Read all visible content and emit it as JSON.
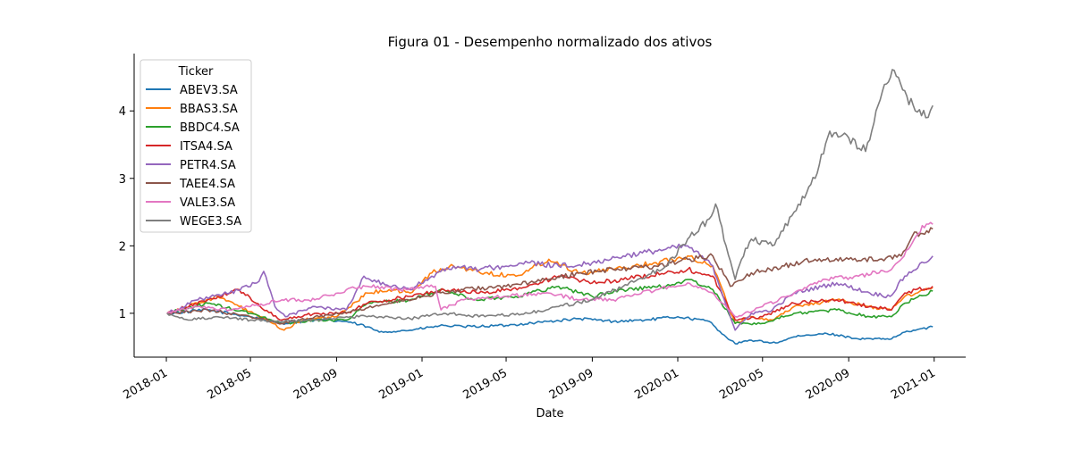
{
  "chart_data": {
    "type": "line",
    "title": "Figura 01 - Desempenho normalizado dos ativos",
    "xlabel": "Date",
    "ylabel": "",
    "xlim": [
      "2017-11-16",
      "2021-02-15"
    ],
    "ylim": [
      0.35,
      4.85
    ],
    "x_ticks": [
      "2018-01",
      "2018-05",
      "2018-09",
      "2019-01",
      "2019-05",
      "2019-09",
      "2020-01",
      "2020-05",
      "2020-09",
      "2021-01"
    ],
    "y_ticks": [
      1,
      2,
      3,
      4
    ],
    "grid": false,
    "legend": {
      "title": "Ticker",
      "position": "top-left"
    },
    "series": [
      {
        "name": "ABEV3.SA",
        "color": "#1f77b4",
        "points": [
          [
            "2018-01-02",
            1.0
          ],
          [
            "2018-03-01",
            1.05
          ],
          [
            "2018-05-01",
            0.95
          ],
          [
            "2018-06-15",
            0.85
          ],
          [
            "2018-08-01",
            0.9
          ],
          [
            "2018-09-15",
            0.88
          ],
          [
            "2018-10-15",
            0.8
          ],
          [
            "2018-11-01",
            0.72
          ],
          [
            "2018-12-15",
            0.75
          ],
          [
            "2019-02-01",
            0.82
          ],
          [
            "2019-03-01",
            0.8
          ],
          [
            "2019-05-01",
            0.82
          ],
          [
            "2019-07-01",
            0.88
          ],
          [
            "2019-08-15",
            0.92
          ],
          [
            "2019-10-01",
            0.88
          ],
          [
            "2019-11-15",
            0.9
          ],
          [
            "2020-01-01",
            0.95
          ],
          [
            "2020-02-15",
            0.88
          ],
          [
            "2020-03-10",
            0.65
          ],
          [
            "2020-03-23",
            0.55
          ],
          [
            "2020-04-15",
            0.6
          ],
          [
            "2020-05-20",
            0.56
          ],
          [
            "2020-06-15",
            0.65
          ],
          [
            "2020-08-01",
            0.7
          ],
          [
            "2020-08-15",
            0.68
          ],
          [
            "2020-09-15",
            0.62
          ],
          [
            "2020-11-01",
            0.62
          ],
          [
            "2020-11-20",
            0.72
          ],
          [
            "2020-12-30",
            0.8
          ]
        ]
      },
      {
        "name": "BBAS3.SA",
        "color": "#ff7f0e",
        "points": [
          [
            "2018-01-02",
            1.0
          ],
          [
            "2018-02-15",
            1.15
          ],
          [
            "2018-03-15",
            1.25
          ],
          [
            "2018-04-15",
            1.1
          ],
          [
            "2018-05-15",
            0.95
          ],
          [
            "2018-06-18",
            0.75
          ],
          [
            "2018-07-15",
            0.9
          ],
          [
            "2018-09-01",
            0.95
          ],
          [
            "2018-10-15",
            1.3
          ],
          [
            "2018-11-15",
            1.35
          ],
          [
            "2018-12-15",
            1.3
          ],
          [
            "2019-01-15",
            1.6
          ],
          [
            "2019-02-15",
            1.7
          ],
          [
            "2019-04-01",
            1.6
          ],
          [
            "2019-05-15",
            1.55
          ],
          [
            "2019-07-01",
            1.8
          ],
          [
            "2019-08-15",
            1.6
          ],
          [
            "2019-10-01",
            1.65
          ],
          [
            "2019-12-01",
            1.75
          ],
          [
            "2020-01-15",
            1.85
          ],
          [
            "2020-02-20",
            1.7
          ],
          [
            "2020-03-10",
            1.2
          ],
          [
            "2020-03-23",
            0.85
          ],
          [
            "2020-04-15",
            0.95
          ],
          [
            "2020-05-15",
            0.9
          ],
          [
            "2020-06-15",
            1.1
          ],
          [
            "2020-08-15",
            1.2
          ],
          [
            "2020-09-30",
            1.1
          ],
          [
            "2020-11-01",
            1.05
          ],
          [
            "2020-11-20",
            1.25
          ],
          [
            "2020-12-30",
            1.38
          ]
        ]
      },
      {
        "name": "BBDC4.SA",
        "color": "#2ca02c",
        "points": [
          [
            "2018-01-02",
            1.0
          ],
          [
            "2018-03-01",
            1.15
          ],
          [
            "2018-05-01",
            1.0
          ],
          [
            "2018-06-15",
            0.85
          ],
          [
            "2018-08-01",
            0.9
          ],
          [
            "2018-09-15",
            0.9
          ],
          [
            "2018-10-15",
            1.15
          ],
          [
            "2018-12-15",
            1.2
          ],
          [
            "2019-02-01",
            1.35
          ],
          [
            "2019-03-15",
            1.2
          ],
          [
            "2019-05-15",
            1.25
          ],
          [
            "2019-07-15",
            1.4
          ],
          [
            "2019-09-01",
            1.25
          ],
          [
            "2019-10-15",
            1.35
          ],
          [
            "2019-12-15",
            1.4
          ],
          [
            "2020-01-15",
            1.5
          ],
          [
            "2020-02-20",
            1.35
          ],
          [
            "2020-03-23",
            0.85
          ],
          [
            "2020-05-01",
            0.85
          ],
          [
            "2020-06-15",
            1.0
          ],
          [
            "2020-08-15",
            1.05
          ],
          [
            "2020-10-01",
            0.95
          ],
          [
            "2020-11-01",
            0.95
          ],
          [
            "2020-11-20",
            1.15
          ],
          [
            "2020-12-30",
            1.33
          ]
        ]
      },
      {
        "name": "ITSA4.SA",
        "color": "#d62728",
        "points": [
          [
            "2018-01-02",
            1.0
          ],
          [
            "2018-03-01",
            1.2
          ],
          [
            "2018-04-15",
            1.35
          ],
          [
            "2018-05-15",
            1.1
          ],
          [
            "2018-06-15",
            0.9
          ],
          [
            "2018-08-01",
            1.0
          ],
          [
            "2018-09-15",
            1.0
          ],
          [
            "2018-10-15",
            1.15
          ],
          [
            "2018-12-15",
            1.25
          ],
          [
            "2019-02-01",
            1.35
          ],
          [
            "2019-04-01",
            1.3
          ],
          [
            "2019-06-01",
            1.4
          ],
          [
            "2019-07-15",
            1.55
          ],
          [
            "2019-09-01",
            1.45
          ],
          [
            "2019-10-15",
            1.5
          ],
          [
            "2019-12-15",
            1.6
          ],
          [
            "2020-01-15",
            1.65
          ],
          [
            "2020-02-20",
            1.55
          ],
          [
            "2020-03-23",
            0.9
          ],
          [
            "2020-05-01",
            0.95
          ],
          [
            "2020-06-15",
            1.15
          ],
          [
            "2020-08-15",
            1.2
          ],
          [
            "2020-10-01",
            1.1
          ],
          [
            "2020-11-01",
            1.05
          ],
          [
            "2020-11-20",
            1.3
          ],
          [
            "2020-12-30",
            1.4
          ]
        ]
      },
      {
        "name": "PETR4.SA",
        "color": "#9467bd",
        "points": [
          [
            "2018-01-02",
            1.0
          ],
          [
            "2018-02-15",
            1.2
          ],
          [
            "2018-04-01",
            1.3
          ],
          [
            "2018-05-10",
            1.45
          ],
          [
            "2018-05-20",
            1.62
          ],
          [
            "2018-06-05",
            1.1
          ],
          [
            "2018-06-20",
            0.95
          ],
          [
            "2018-08-01",
            1.1
          ],
          [
            "2018-09-15",
            1.05
          ],
          [
            "2018-10-10",
            1.55
          ],
          [
            "2018-11-15",
            1.4
          ],
          [
            "2018-12-15",
            1.35
          ],
          [
            "2019-01-15",
            1.55
          ],
          [
            "2019-02-15",
            1.7
          ],
          [
            "2019-03-15",
            1.65
          ],
          [
            "2019-05-01",
            1.7
          ],
          [
            "2019-06-01",
            1.75
          ],
          [
            "2019-07-15",
            1.7
          ],
          [
            "2019-09-01",
            1.75
          ],
          [
            "2019-10-15",
            1.85
          ],
          [
            "2019-12-15",
            1.95
          ],
          [
            "2020-01-15",
            2.0
          ],
          [
            "2020-02-20",
            1.7
          ],
          [
            "2020-03-23",
            0.75
          ],
          [
            "2020-04-15",
            1.0
          ],
          [
            "2020-05-15",
            1.05
          ],
          [
            "2020-06-15",
            1.3
          ],
          [
            "2020-08-15",
            1.45
          ],
          [
            "2020-10-01",
            1.3
          ],
          [
            "2020-10-30",
            1.25
          ],
          [
            "2020-11-20",
            1.55
          ],
          [
            "2020-12-30",
            1.85
          ]
        ]
      },
      {
        "name": "TAEE4.SA",
        "color": "#8c564b",
        "points": [
          [
            "2018-01-02",
            1.0
          ],
          [
            "2018-03-01",
            1.05
          ],
          [
            "2018-05-01",
            0.95
          ],
          [
            "2018-06-15",
            0.85
          ],
          [
            "2018-08-01",
            0.95
          ],
          [
            "2018-10-01",
            1.05
          ],
          [
            "2018-11-15",
            1.15
          ],
          [
            "2019-01-01",
            1.25
          ],
          [
            "2019-03-01",
            1.35
          ],
          [
            "2019-05-01",
            1.4
          ],
          [
            "2019-07-01",
            1.5
          ],
          [
            "2019-08-15",
            1.6
          ],
          [
            "2019-10-01",
            1.65
          ],
          [
            "2019-12-01",
            1.7
          ],
          [
            "2020-01-15",
            1.8
          ],
          [
            "2020-02-20",
            1.85
          ],
          [
            "2020-03-16",
            1.4
          ],
          [
            "2020-04-15",
            1.6
          ],
          [
            "2020-06-01",
            1.7
          ],
          [
            "2020-07-15",
            1.8
          ],
          [
            "2020-09-01",
            1.8
          ],
          [
            "2020-10-15",
            1.8
          ],
          [
            "2020-11-15",
            1.85
          ],
          [
            "2020-12-01",
            2.15
          ],
          [
            "2020-12-30",
            2.25
          ]
        ]
      },
      {
        "name": "VALE3.SA",
        "color": "#e377c2",
        "points": [
          [
            "2018-01-02",
            1.0
          ],
          [
            "2018-02-15",
            1.1
          ],
          [
            "2018-04-01",
            1.05
          ],
          [
            "2018-05-01",
            1.1
          ],
          [
            "2018-06-15",
            1.2
          ],
          [
            "2018-08-01",
            1.2
          ],
          [
            "2018-09-15",
            1.35
          ],
          [
            "2018-10-15",
            1.4
          ],
          [
            "2018-12-01",
            1.35
          ],
          [
            "2019-01-20",
            1.4
          ],
          [
            "2019-01-28",
            1.05
          ],
          [
            "2019-03-01",
            1.2
          ],
          [
            "2019-05-01",
            1.25
          ],
          [
            "2019-07-01",
            1.3
          ],
          [
            "2019-08-15",
            1.2
          ],
          [
            "2019-10-01",
            1.2
          ],
          [
            "2019-12-01",
            1.35
          ],
          [
            "2020-01-15",
            1.45
          ],
          [
            "2020-02-20",
            1.3
          ],
          [
            "2020-03-23",
            0.95
          ],
          [
            "2020-05-01",
            1.1
          ],
          [
            "2020-06-15",
            1.3
          ],
          [
            "2020-08-01",
            1.5
          ],
          [
            "2020-09-15",
            1.55
          ],
          [
            "2020-11-01",
            1.65
          ],
          [
            "2020-11-25",
            1.95
          ],
          [
            "2020-12-15",
            2.3
          ],
          [
            "2020-12-30",
            2.32
          ]
        ]
      },
      {
        "name": "WEGE3.SA",
        "color": "#7f7f7f",
        "points": [
          [
            "2018-01-02",
            1.0
          ],
          [
            "2018-02-01",
            0.9
          ],
          [
            "2018-03-15",
            0.95
          ],
          [
            "2018-05-01",
            0.9
          ],
          [
            "2018-06-15",
            0.88
          ],
          [
            "2018-08-01",
            0.9
          ],
          [
            "2018-09-15",
            0.95
          ],
          [
            "2018-11-01",
            0.95
          ],
          [
            "2018-12-15",
            0.92
          ],
          [
            "2019-02-01",
            1.0
          ],
          [
            "2019-04-01",
            0.95
          ],
          [
            "2019-06-01",
            1.0
          ],
          [
            "2019-07-15",
            1.1
          ],
          [
            "2019-09-01",
            1.2
          ],
          [
            "2019-10-15",
            1.4
          ],
          [
            "2019-12-15",
            1.7
          ],
          [
            "2020-01-15",
            2.1
          ],
          [
            "2020-02-15",
            2.4
          ],
          [
            "2020-02-24",
            2.62
          ],
          [
            "2020-03-10",
            2.0
          ],
          [
            "2020-03-23",
            1.5
          ],
          [
            "2020-04-01",
            1.8
          ],
          [
            "2020-04-15",
            2.1
          ],
          [
            "2020-05-15",
            2.0
          ],
          [
            "2020-06-15",
            2.5
          ],
          [
            "2020-07-15",
            3.0
          ],
          [
            "2020-08-05",
            3.7
          ],
          [
            "2020-09-01",
            3.6
          ],
          [
            "2020-09-25",
            3.4
          ],
          [
            "2020-10-10",
            4.0
          ],
          [
            "2020-10-25",
            4.4
          ],
          [
            "2020-11-05",
            4.6
          ],
          [
            "2020-11-20",
            4.3
          ],
          [
            "2020-12-05",
            4.0
          ],
          [
            "2020-12-20",
            3.9
          ],
          [
            "2020-12-30",
            4.08
          ]
        ]
      }
    ]
  }
}
